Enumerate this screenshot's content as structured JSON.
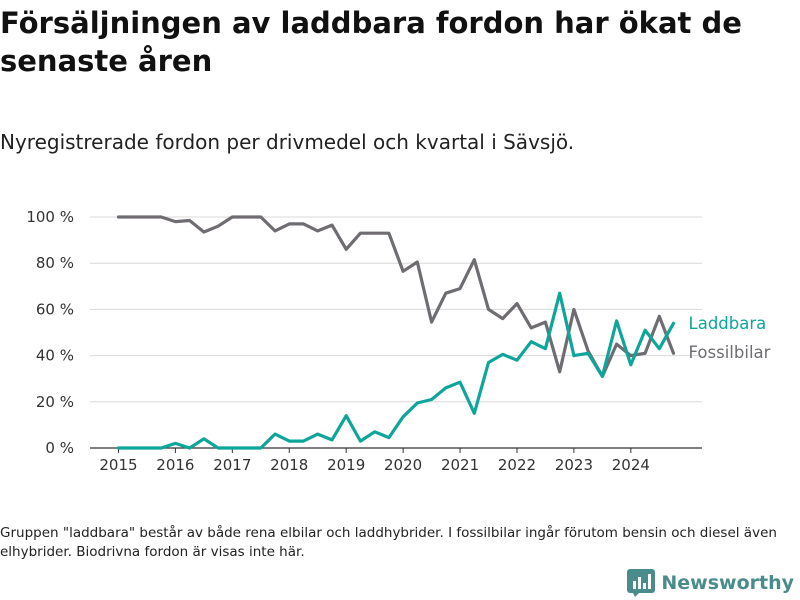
{
  "title": "Försäljningen av laddbara fordon har ökat de senaste åren",
  "subtitle": "Nyregistrerade fordon per drivmedel och kvartal i Sävsjö.",
  "footnote": "Gruppen \"laddbara\" består av både rena elbilar och laddhybrider. I fossilbilar ingår förutom bensin och diesel även elhybrider. Biodrivna fordon är visas inte här.",
  "brand": {
    "name": "Newsworthy",
    "icon": "newsworthy-logo-icon",
    "color": "#4a8c8c"
  },
  "chart_data": {
    "type": "line",
    "title": "Nyregistrerade fordon per drivmedel och kvartal i Sävsjö.",
    "xlabel": "",
    "ylabel": "",
    "ylim": [
      0,
      100
    ],
    "xlim": [
      2014.5,
      2025.25
    ],
    "yticks": [
      0,
      20,
      40,
      60,
      80,
      100
    ],
    "ytick_labels": [
      "0 %",
      "20 %",
      "40 %",
      "60 %",
      "80 %",
      "100 %"
    ],
    "xticks": [
      2015,
      2016,
      2017,
      2018,
      2019,
      2020,
      2021,
      2022,
      2023,
      2024
    ],
    "xtick_labels": [
      "2015",
      "2016",
      "2017",
      "2018",
      "2019",
      "2020",
      "2021",
      "2022",
      "2023",
      "2024"
    ],
    "grid": true,
    "legend": "inline-right",
    "x": [
      2015.0,
      2015.25,
      2015.5,
      2015.75,
      2016.0,
      2016.25,
      2016.5,
      2016.75,
      2017.0,
      2017.25,
      2017.5,
      2017.75,
      2018.0,
      2018.25,
      2018.5,
      2018.75,
      2019.0,
      2019.25,
      2019.5,
      2019.75,
      2020.0,
      2020.25,
      2020.5,
      2020.75,
      2021.0,
      2021.25,
      2021.5,
      2021.75,
      2022.0,
      2022.25,
      2022.5,
      2022.75,
      2023.0,
      2023.25,
      2023.5,
      2023.75,
      2024.0,
      2024.25,
      2024.5,
      2024.75
    ],
    "series": [
      {
        "name": "Fossilbilar",
        "color": "#6f6c72",
        "values": [
          100,
          100,
          100,
          100,
          98,
          98.5,
          93.5,
          96,
          100,
          100,
          100,
          94,
          97,
          97,
          94,
          96.5,
          86,
          93,
          93,
          93,
          76.5,
          80.5,
          54.5,
          67,
          69,
          81.5,
          60,
          56,
          62.5,
          52,
          54.5,
          33,
          60,
          42,
          31,
          45,
          40,
          41,
          57,
          41
        ]
      },
      {
        "name": "Laddbara",
        "color": "#0ea59a",
        "values": [
          0,
          0,
          0,
          0,
          2,
          0,
          4,
          0,
          0,
          0,
          0,
          6,
          3,
          3,
          6,
          3.5,
          14,
          3,
          7,
          4.5,
          13.5,
          19.5,
          21,
          26,
          28.5,
          15,
          37,
          40.5,
          38,
          46,
          43,
          67,
          40,
          41,
          31,
          55,
          36,
          51,
          43,
          54
        ]
      }
    ]
  }
}
